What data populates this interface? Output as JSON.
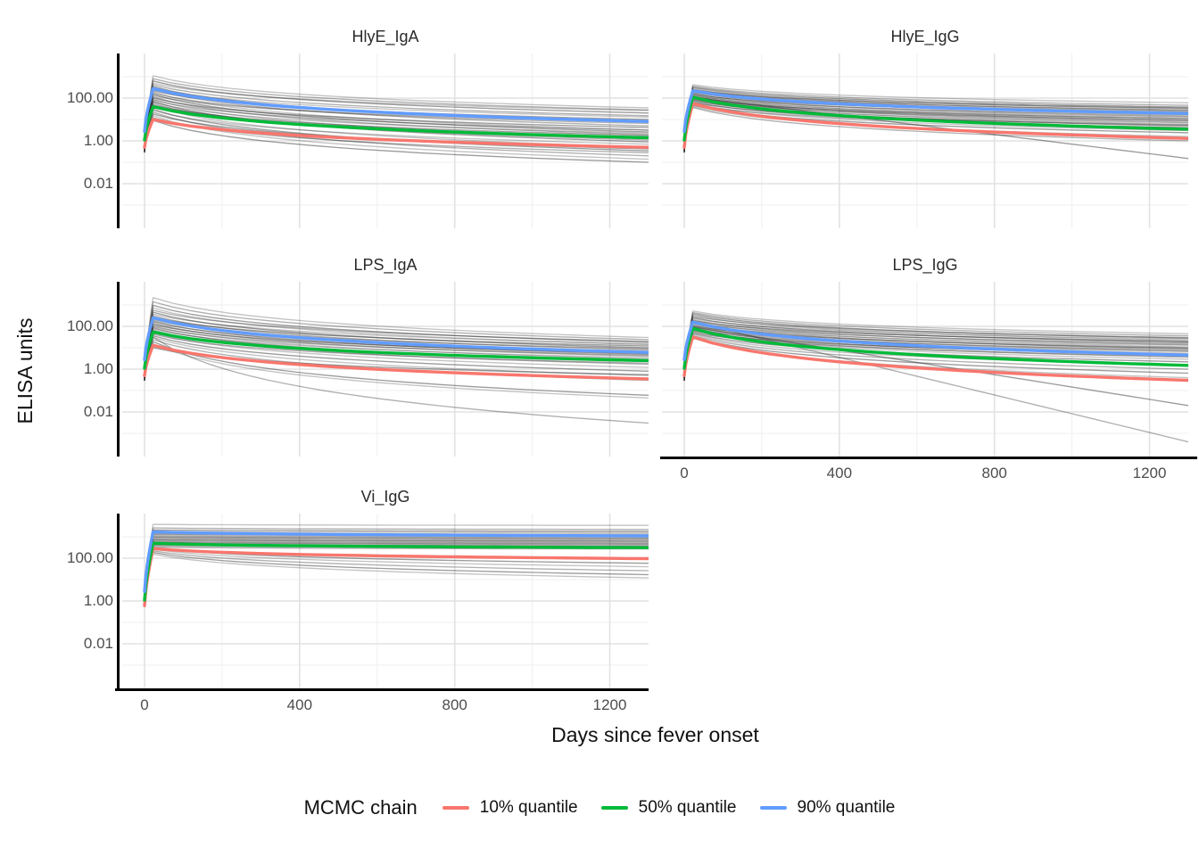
{
  "chart_data": {
    "type": "line",
    "title": "",
    "x": {
      "label": "Days since fever onset",
      "tick_labels": [
        "0",
        "400",
        "800",
        "1200"
      ],
      "tick_values": [
        0,
        400,
        800,
        1200
      ],
      "minor_tick_values": [
        200,
        600,
        1000
      ],
      "range": [
        -57,
        1300
      ],
      "grid": true
    },
    "y": {
      "label": "ELISA units",
      "scale": "log10",
      "tick_labels": [
        "100.00",
        "1.00",
        "0.01"
      ],
      "tick_values": [
        100,
        1,
        0.01
      ],
      "tick_log10": [
        2,
        0,
        -2
      ],
      "minor_log10": [
        3,
        1,
        -1,
        -3
      ],
      "range_log10": [
        -4.1,
        4.1
      ],
      "grid": true
    },
    "legend": {
      "title": "MCMC chain",
      "position": "bottom",
      "items": [
        {
          "key": "q10",
          "label": "10% quantile",
          "color": "#F8766D"
        },
        {
          "key": "q50",
          "label": "50% quantile",
          "color": "#00BA38"
        },
        {
          "key": "q90",
          "label": "90% quantile",
          "color": "#619CFF"
        }
      ]
    },
    "sample_line_color": "#282828",
    "rise_peak_day": 22,
    "facets": [
      {
        "title": "HlyE_IgA",
        "row": 0,
        "col": 0,
        "y_labels": true,
        "x_axis": false,
        "quantiles": {
          "q10": {
            "y0": 0.5,
            "peak": 10,
            "end": 0.5
          },
          "q50": {
            "y0": 1.1,
            "peak": 40,
            "end": 1.4
          },
          "q90": {
            "y0": 2.8,
            "peak": 280,
            "end": 8
          }
        },
        "samples": [
          [
            1100,
            35
          ],
          [
            800,
            28
          ],
          [
            630,
            20
          ],
          [
            500,
            26
          ],
          [
            420,
            15
          ],
          [
            350,
            8
          ],
          [
            300,
            13
          ],
          [
            260,
            5
          ],
          [
            220,
            10
          ],
          [
            190,
            3.2
          ],
          [
            170,
            6.5
          ],
          [
            150,
            2.6
          ],
          [
            130,
            8
          ],
          [
            115,
            2
          ],
          [
            100,
            4.2
          ],
          [
            90,
            1.3
          ],
          [
            80,
            3.2
          ],
          [
            70,
            0.9
          ],
          [
            63,
            2.3
          ],
          [
            56,
            1.1
          ],
          [
            48,
            1.8
          ],
          [
            42,
            0.5
          ],
          [
            36,
            1.4
          ],
          [
            30,
            0.34
          ],
          [
            26,
            0.7
          ],
          [
            22,
            0.2
          ],
          [
            18,
            0.42
          ],
          [
            15,
            0.14
          ],
          [
            12,
            0.28
          ],
          [
            9,
            0.1
          ]
        ]
      },
      {
        "title": "HlyE_IgG",
        "row": 0,
        "col": 1,
        "y_labels": false,
        "x_axis": false,
        "quantiles": {
          "q10": {
            "y0": 0.5,
            "peak": 55,
            "end": 1.3
          },
          "q50": {
            "y0": 1.1,
            "peak": 110,
            "end": 3.5
          },
          "q90": {
            "y0": 2.8,
            "peak": 220,
            "end": 19
          }
        },
        "samples": [
          [
            420,
            60
          ],
          [
            360,
            46
          ],
          [
            320,
            38
          ],
          [
            290,
            32
          ],
          [
            260,
            26
          ],
          [
            240,
            34
          ],
          [
            220,
            22
          ],
          [
            205,
            28
          ],
          [
            190,
            18
          ],
          [
            175,
            24
          ],
          [
            160,
            14
          ],
          [
            150,
            20
          ],
          [
            140,
            11
          ],
          [
            130,
            16
          ],
          [
            120,
            9
          ],
          [
            112,
            13
          ],
          [
            105,
            7.5
          ],
          [
            98,
            11
          ],
          [
            92,
            6
          ],
          [
            86,
            9
          ],
          [
            80,
            5
          ],
          [
            74,
            7
          ],
          [
            68,
            4
          ],
          [
            62,
            5.5
          ],
          [
            56,
            3
          ],
          [
            50,
            4.2
          ],
          [
            45,
            2.4
          ],
          [
            40,
            1.6
          ],
          [
            36,
            1
          ],
          [
            110,
            0.15,
            "lin"
          ]
        ]
      },
      {
        "title": "LPS_IgA",
        "row": 1,
        "col": 0,
        "y_labels": true,
        "x_axis": false,
        "quantiles": {
          "q10": {
            "y0": 0.5,
            "peak": 13,
            "end": 0.35
          },
          "q50": {
            "y0": 1.1,
            "peak": 55,
            "end": 2.5
          },
          "q90": {
            "y0": 2.8,
            "peak": 250,
            "end": 6
          }
        },
        "samples": [
          [
            2200,
            30
          ],
          [
            1400,
            24
          ],
          [
            950,
            18
          ],
          [
            720,
            14
          ],
          [
            560,
            20
          ],
          [
            460,
            10
          ],
          [
            380,
            15
          ],
          [
            320,
            8
          ],
          [
            270,
            12
          ],
          [
            230,
            6.5
          ],
          [
            200,
            9
          ],
          [
            175,
            5
          ],
          [
            155,
            7
          ],
          [
            138,
            4
          ],
          [
            122,
            5.5
          ],
          [
            108,
            3
          ],
          [
            95,
            4.5
          ],
          [
            84,
            2.3
          ],
          [
            74,
            3.4
          ],
          [
            65,
            1.7
          ],
          [
            56,
            2.6
          ],
          [
            48,
            1.2
          ],
          [
            42,
            1.9
          ],
          [
            36,
            0.8
          ],
          [
            30,
            0.5
          ],
          [
            24,
            0.3
          ],
          [
            19,
            0.06
          ],
          [
            15,
            0.045
          ],
          [
            32,
            0.003
          ],
          [
            10,
            0.55
          ]
        ]
      },
      {
        "title": "LPS_IgG",
        "row": 1,
        "col": 1,
        "y_labels": false,
        "x_axis": true,
        "quantiles": {
          "q10": {
            "y0": 0.5,
            "peak": 32,
            "end": 0.3
          },
          "q50": {
            "y0": 1.1,
            "peak": 80,
            "end": 1.5
          },
          "q90": {
            "y0": 2.8,
            "peak": 160,
            "end": 4.5
          }
        },
        "samples": [
          [
            520,
            45
          ],
          [
            440,
            36
          ],
          [
            380,
            28
          ],
          [
            330,
            22
          ],
          [
            290,
            30
          ],
          [
            255,
            18
          ],
          [
            225,
            25
          ],
          [
            200,
            14
          ],
          [
            182,
            20
          ],
          [
            165,
            11
          ],
          [
            150,
            16
          ],
          [
            138,
            9
          ],
          [
            126,
            13
          ],
          [
            115,
            7
          ],
          [
            105,
            10
          ],
          [
            96,
            5.5
          ],
          [
            88,
            8
          ],
          [
            81,
            4.6
          ],
          [
            74,
            6.6
          ],
          [
            68,
            3.6
          ],
          [
            62,
            5
          ],
          [
            57,
            2.9
          ],
          [
            52,
            4
          ],
          [
            47,
            2.2
          ],
          [
            42,
            1.5
          ],
          [
            37,
            1
          ],
          [
            32,
            0.65
          ],
          [
            28,
            0.4
          ],
          [
            160,
            0.0004,
            "lin"
          ],
          [
            95,
            0.02,
            "lin"
          ]
        ]
      },
      {
        "title": "Vi_IgG",
        "row": 2,
        "col": 0,
        "y_labels": true,
        "x_axis": true,
        "quantiles": {
          "q10": {
            "y0": 0.6,
            "peak": 280,
            "end": 95
          },
          "q50": {
            "y0": 1.1,
            "peak": 500,
            "end": 310
          },
          "q90": {
            "y0": 2.8,
            "peak": 1700,
            "end": 1100
          }
        },
        "samples": [
          [
            3800,
            3400
          ],
          [
            2600,
            2200
          ],
          [
            2100,
            1800
          ],
          [
            1750,
            1550
          ],
          [
            1500,
            1320
          ],
          [
            1320,
            1150
          ],
          [
            1180,
            1020
          ],
          [
            1060,
            920
          ],
          [
            950,
            830
          ],
          [
            860,
            750
          ],
          [
            780,
            680
          ],
          [
            710,
            620
          ],
          [
            650,
            560
          ],
          [
            590,
            510
          ],
          [
            540,
            460
          ],
          [
            490,
            420
          ],
          [
            450,
            380
          ],
          [
            410,
            350
          ],
          [
            370,
            310
          ],
          [
            330,
            270
          ],
          [
            300,
            58
          ],
          [
            260,
            40
          ],
          [
            220,
            26
          ],
          [
            185,
            17
          ],
          [
            155,
            12
          ]
        ]
      }
    ]
  }
}
